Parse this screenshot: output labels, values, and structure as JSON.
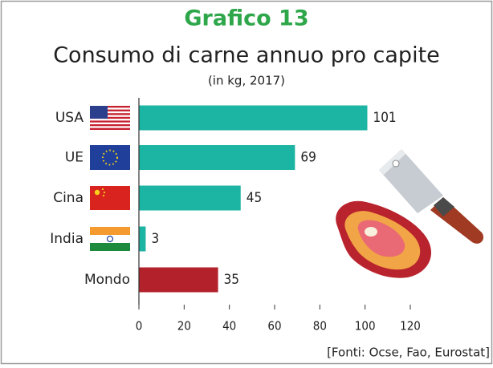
{
  "chart_data": {
    "type": "bar",
    "orientation": "horizontal",
    "title": "Grafico 13",
    "subtitle": "Consumo di carne annuo pro capite",
    "unit_note": "(in kg, 2017)",
    "source": "[Fonti: Ocse, Fao, Eurostat]",
    "categories": [
      "USA",
      "UE",
      "Cina",
      "India",
      "Mondo"
    ],
    "values": [
      101,
      69,
      45,
      3,
      35
    ],
    "colors": [
      "#1cb4a3",
      "#1cb4a3",
      "#1cb4a3",
      "#1cb4a3",
      "#b3212b"
    ],
    "xlim": [
      0,
      120
    ],
    "xticks": [
      0,
      20,
      40,
      60,
      80,
      100,
      120
    ]
  }
}
